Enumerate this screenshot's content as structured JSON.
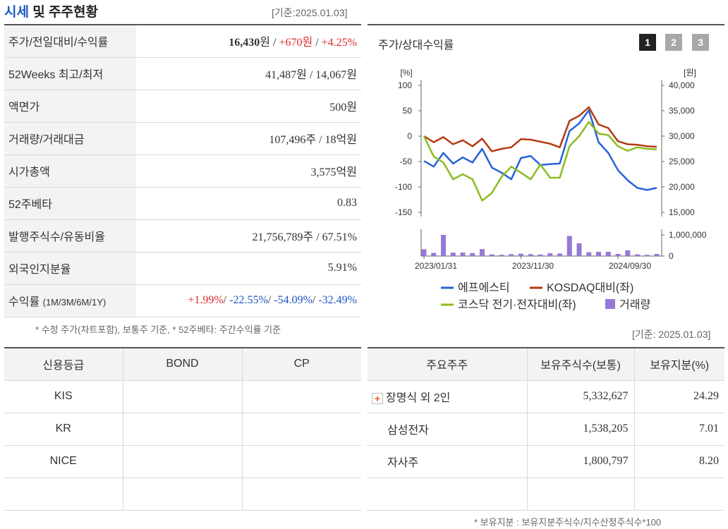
{
  "header": {
    "title_blue": "시세",
    "title_rest": " 및 주주현황",
    "basis_date": "[기준:2025.01.03]"
  },
  "price_table": [
    {
      "label": "주가/전일대비/수익률",
      "price": "16,430",
      "unit": "원",
      "sep1": " / ",
      "change": "+670원",
      "sep2": " / ",
      "rate": "+4.25%"
    },
    {
      "label": "52Weeks 최고/최저",
      "value": "41,487원 / 14,067원"
    },
    {
      "label": "액면가",
      "value": "500원"
    },
    {
      "label": "거래량/거래대금",
      "value": "107,496주 / 18억원"
    },
    {
      "label": "시가총액",
      "value": "3,575억원"
    },
    {
      "label": "52주베타",
      "value": "0.83"
    },
    {
      "label": "발행주식수/유동비율",
      "value": "21,756,789주 / 67.51%"
    },
    {
      "label": "외국인지분율",
      "value": "5.91%"
    },
    {
      "label": "수익률",
      "label_sub": "(1M/3M/6M/1Y)",
      "r1m": "+1.99%",
      "r3m": "-22.55%",
      "r6m": "-54.09%",
      "r1y": "-32.49%"
    }
  ],
  "note1": "* 수정 주가(차트포함), 보통주 기준, * 52주베타: 주간수익률 기준",
  "chart_panel": {
    "title": "주가/상대수익률",
    "pages": [
      "1",
      "2",
      "3"
    ],
    "basis_date": "[기준: 2025.01.03]"
  },
  "chart_data": {
    "type": "line",
    "left_axis": {
      "label": "[%]",
      "ticks": [
        "100",
        "50",
        "0",
        "-50",
        "-100",
        "-150"
      ],
      "range": [
        -150,
        100
      ]
    },
    "right_axis": {
      "label": "[원]",
      "ticks": [
        "40,000",
        "35,000",
        "30,000",
        "25,000",
        "20,000",
        "15,000"
      ],
      "range": [
        15000,
        40000
      ]
    },
    "volume_axis": {
      "ticks": [
        "1,000,000",
        "0"
      ],
      "range": [
        0,
        1000000
      ]
    },
    "x_labels": [
      "2023/01/31",
      "2023/11/30",
      "2024/09/30"
    ],
    "x_label_index": [
      0,
      10,
      20
    ],
    "series": [
      {
        "name": "에프에스티",
        "color": "#2563d6",
        "axis": "price",
        "values": [
          25100,
          24000,
          26700,
          24600,
          25800,
          24800,
          27500,
          23800,
          22800,
          21500,
          25700,
          26100,
          24300,
          24500,
          24600,
          31000,
          32500,
          35100,
          28800,
          26700,
          23300,
          21300,
          19800,
          19400,
          19800
        ]
      },
      {
        "name": "KOSDAQ대비(좌)",
        "color": "#b33a12",
        "axis": "left",
        "values": [
          0,
          -12,
          -2,
          -16,
          -8,
          -20,
          -5,
          -30,
          -25,
          -22,
          -6,
          -7,
          -11,
          -15,
          -22,
          30,
          40,
          57,
          23,
          16,
          -10,
          -16,
          -17,
          -20,
          -21
        ]
      },
      {
        "name": "코스닥 전기·전자대비(좌)",
        "color": "#8cbb22",
        "axis": "left",
        "values": [
          0,
          -40,
          -52,
          -85,
          -75,
          -85,
          -127,
          -112,
          -80,
          -60,
          -72,
          -85,
          -56,
          -82,
          -82,
          -20,
          0,
          28,
          5,
          2,
          -20,
          -29,
          -22,
          -25,
          -26
        ]
      },
      {
        "name": "거래량",
        "color": "#9678d6",
        "axis": "volume",
        "values": [
          320000,
          150000,
          1000000,
          160000,
          160000,
          140000,
          330000,
          80000,
          60000,
          90000,
          110000,
          90000,
          70000,
          130000,
          120000,
          950000,
          600000,
          180000,
          200000,
          200000,
          100000,
          270000,
          80000,
          60000,
          100000
        ]
      }
    ]
  },
  "credit_table": {
    "headers": [
      "신용등급",
      "BOND",
      "CP"
    ],
    "rows": [
      [
        "KIS",
        "",
        ""
      ],
      [
        "KR",
        "",
        ""
      ],
      [
        "NICE",
        "",
        ""
      ],
      [
        "",
        "",
        ""
      ]
    ]
  },
  "holder_table": {
    "headers": [
      "주요주주",
      "보유주식수(보통)",
      "보유지분(%)"
    ],
    "rows": [
      {
        "name": "장명식 외 2인",
        "shares": "5,332,627",
        "pct": "24.29"
      },
      {
        "name": "삼성전자",
        "shares": "1,538,205",
        "pct": "7.01"
      },
      {
        "name": "자사주",
        "shares": "1,800,797",
        "pct": "8.20"
      },
      {
        "name": "",
        "shares": "",
        "pct": ""
      }
    ]
  },
  "note2": "* 보유지분 : 보유지분주식수/지수산정주식수*100"
}
